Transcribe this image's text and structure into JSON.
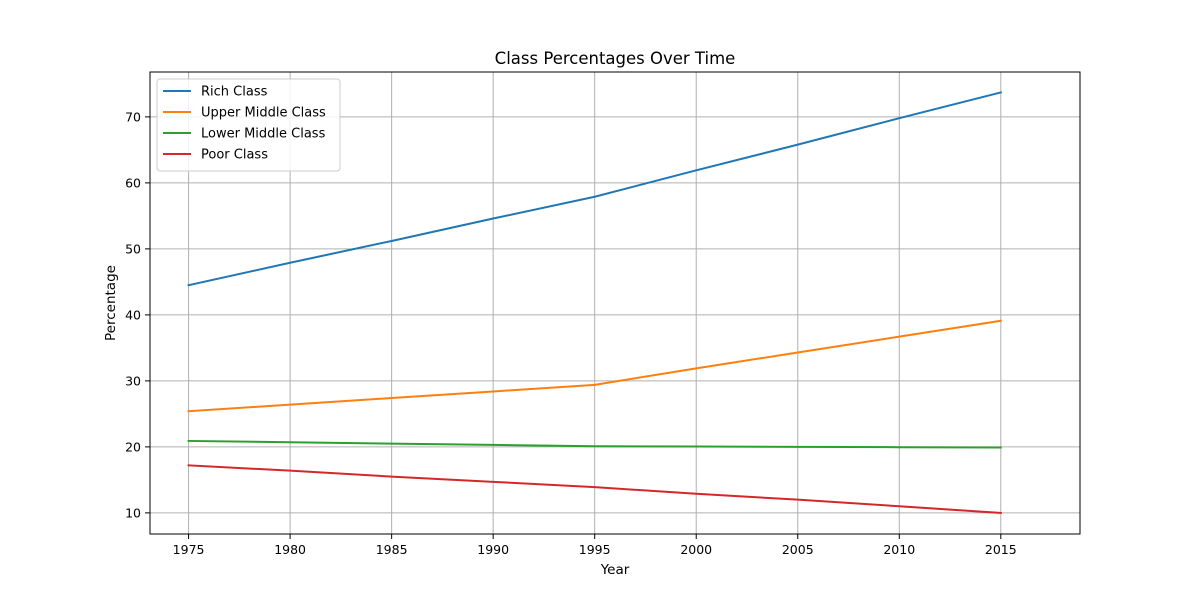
{
  "chart_data": {
    "type": "line",
    "title": "Class Percentages Over Time",
    "xlabel": "Year",
    "ylabel": "Percentage",
    "x": [
      1975,
      1980,
      1985,
      1990,
      1995,
      2000,
      2005,
      2010,
      2015
    ],
    "xlim": [
      1973.1,
      2018.9
    ],
    "ylim": [
      6.8,
      76.8
    ],
    "xticks": [
      1975,
      1980,
      1985,
      1990,
      1995,
      2000,
      2005,
      2010,
      2015
    ],
    "yticks": [
      10,
      20,
      30,
      40,
      50,
      60,
      70
    ],
    "grid": true,
    "legend_position": "top-left",
    "series": [
      {
        "name": "Rich Class",
        "color": "#1f77b4",
        "values": [
          44.5,
          47.9,
          51.2,
          54.6,
          57.9,
          61.9,
          65.8,
          69.8,
          73.7
        ]
      },
      {
        "name": "Upper Middle Class",
        "color": "#ff7f0e",
        "values": [
          25.4,
          26.4,
          27.4,
          28.4,
          29.4,
          31.9,
          34.3,
          36.7,
          39.1
        ]
      },
      {
        "name": "Lower Middle Class",
        "color": "#2ca02c",
        "values": [
          20.9,
          20.7,
          20.5,
          20.3,
          20.1,
          20.05,
          20.0,
          19.95,
          19.9
        ]
      },
      {
        "name": "Poor Class",
        "color": "#d62728",
        "values": [
          17.2,
          16.4,
          15.5,
          14.7,
          13.9,
          12.9,
          12.0,
          11.0,
          10.0
        ]
      }
    ]
  }
}
